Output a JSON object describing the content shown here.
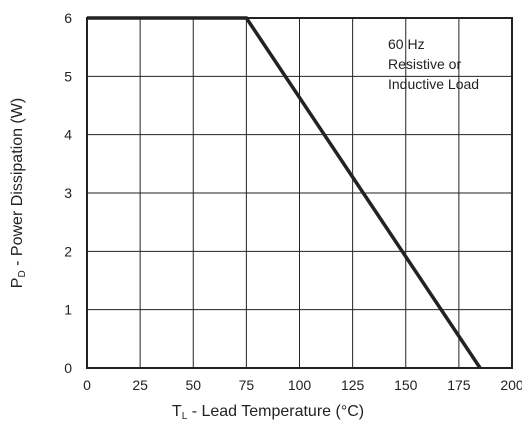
{
  "chart_data": {
    "type": "line",
    "title": "",
    "xlabel_main": "T",
    "xlabel_sub": "L",
    "xlabel_rest": " - Lead Temperature (°C)",
    "ylabel_main": "P",
    "ylabel_sub": "D",
    "ylabel_rest": " - Power Dissipation (W)",
    "xlim": [
      0,
      200
    ],
    "ylim": [
      0,
      6
    ],
    "x_ticks": [
      0,
      25,
      50,
      75,
      100,
      125,
      150,
      175,
      200
    ],
    "y_ticks": [
      0,
      1,
      2,
      3,
      4,
      5,
      6
    ],
    "grid": true,
    "series": [
      {
        "x": [
          0,
          75,
          185
        ],
        "y": [
          6,
          6,
          0
        ],
        "color": "#222222"
      }
    ],
    "annotation": [
      "60 Hz",
      "Resistive or",
      "Inductive Load"
    ]
  }
}
